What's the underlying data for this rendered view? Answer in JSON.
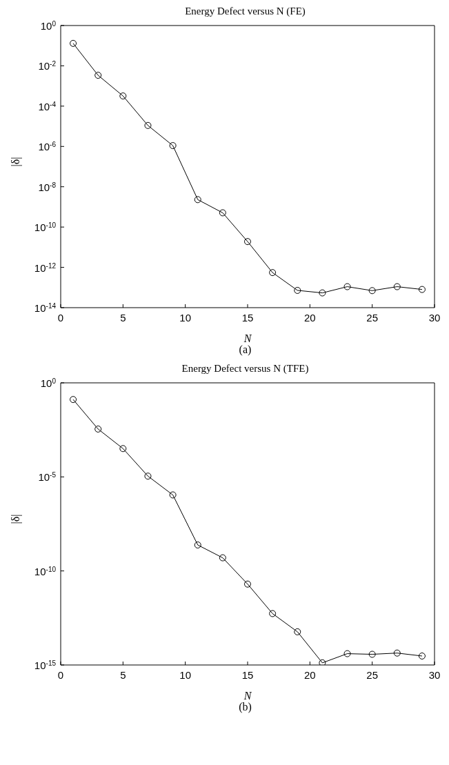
{
  "chart_data": [
    {
      "type": "line",
      "title": "Energy Defect versus N (FE)",
      "xlabel": "N",
      "ylabel": "|δ|",
      "annotations": [
        "(a)"
      ],
      "log": "y",
      "marker": "circle",
      "line_style": "solid",
      "grid": false,
      "x": [
        1,
        3,
        5,
        7,
        9,
        11,
        13,
        15,
        17,
        19,
        21,
        23,
        25,
        27,
        29
      ],
      "series": [
        {
          "color": "#000000",
          "values": [
            0.13,
            0.0034,
            0.00032,
            1.1e-05,
            1.1e-06,
            2.3e-09,
            5.1e-10,
            1.9e-11,
            5.5e-13,
            7.2e-14,
            5.4e-14,
            1.1e-13,
            7e-14,
            1.1e-13,
            8e-14
          ]
        }
      ],
      "xlim": [
        0,
        30
      ],
      "xticks": [
        0,
        5,
        10,
        15,
        20,
        25,
        30
      ],
      "ylim": [
        1e-14,
        1
      ],
      "yticks": [
        {
          "value": 1,
          "label": "10$^{0}$"
        },
        {
          "value": 0.01,
          "label": "10$^{-2}$"
        },
        {
          "value": 0.0001,
          "label": "10$^{-4}$"
        },
        {
          "value": 1e-06,
          "label": "10$^{-6}$"
        },
        {
          "value": 1e-08,
          "label": "10$^{-8}$"
        },
        {
          "value": 1e-10,
          "label": "10$^{-10}$"
        },
        {
          "value": 1e-12,
          "label": "10$^{-12}$"
        },
        {
          "value": 1e-14,
          "label": "10$^{-14}$"
        }
      ]
    },
    {
      "type": "line",
      "title": "Energy Defect versus N (TFE)",
      "xlabel": "N",
      "ylabel": "|δ|",
      "annotations": [
        "(b)"
      ],
      "log": "y",
      "marker": "circle",
      "line_style": "solid",
      "grid": false,
      "x": [
        1,
        3,
        5,
        7,
        9,
        11,
        13,
        15,
        17,
        19,
        21,
        23,
        25,
        27,
        29
      ],
      "series": [
        {
          "color": "#000000",
          "values": [
            0.13,
            0.0035,
            0.00032,
            1.1e-05,
            1.1e-06,
            2.4e-09,
            5e-10,
            2e-11,
            5.4e-13,
            5.8e-14,
            1.3e-15,
            4e-15,
            3.7e-15,
            4.3e-15,
            3e-15
          ]
        }
      ],
      "xlim": [
        0,
        30
      ],
      "xticks": [
        0,
        5,
        10,
        15,
        20,
        25,
        30
      ],
      "ylim": [
        1e-15,
        1
      ],
      "yticks": [
        {
          "value": 1,
          "label": "10$^{0}$"
        },
        {
          "value": 1e-05,
          "label": "10$^{-5}$"
        },
        {
          "value": 1e-10,
          "label": "10$^{-10}$"
        },
        {
          "value": 1e-15,
          "label": "10$^{-15}$"
        }
      ]
    }
  ]
}
